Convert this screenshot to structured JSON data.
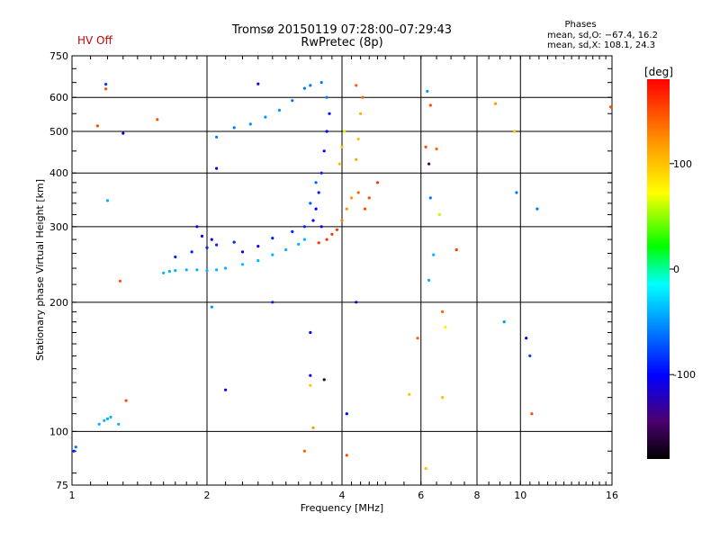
{
  "header": {
    "title": "Tromsø 20150119 07:28:00–07:29:43",
    "subtitle": "RwPretec (8p)",
    "hv_status": "HV Off",
    "hv_color": "#cc0000"
  },
  "phase_info": {
    "title": "Phases",
    "o_mode": "mean, sd,O: −67.4, 16.2",
    "x_mode": "mean, sd,X: 108.1, 24.3"
  },
  "colorbar": {
    "unit": "[deg]",
    "min": -180,
    "max": 180,
    "ticks": [
      100,
      0,
      -100
    ]
  },
  "chart_data": {
    "type": "scatter",
    "title": "Tromsø 20150119 07:28:00–07:29:43",
    "subtitle": "RwPretec (8p)",
    "xlabel": "Frequency [MHz]",
    "ylabel": "Stationary phase Virtual Height [km]",
    "xscale": "log",
    "yscale": "log",
    "xlim": [
      1,
      16
    ],
    "ylim": [
      75,
      750
    ],
    "x_ticks": [
      1,
      2,
      4,
      6,
      8,
      10,
      16
    ],
    "y_ticks": [
      75,
      100,
      200,
      300,
      400,
      500,
      600,
      750
    ],
    "grid": true,
    "color_by": "phase [deg]",
    "series": [
      {
        "name": "Phase samples",
        "points": [
          [
            1.19,
            644,
            -80
          ],
          [
            1.19,
            628,
            150
          ],
          [
            1.14,
            515,
            150
          ],
          [
            1.3,
            495,
            -110
          ],
          [
            1.55,
            533,
            150
          ],
          [
            1.2,
            345,
            -40
          ],
          [
            1.28,
            224,
            150
          ],
          [
            1.15,
            104,
            -40
          ],
          [
            1.18,
            106,
            -40
          ],
          [
            1.2,
            107,
            -40
          ],
          [
            1.22,
            108,
            -40
          ],
          [
            1.27,
            104,
            -40
          ],
          [
            1.01,
            90,
            -90
          ],
          [
            1.02,
            92,
            -60
          ],
          [
            1.32,
            118,
            150
          ],
          [
            1.6,
            234,
            -40
          ],
          [
            1.65,
            236,
            -40
          ],
          [
            1.7,
            237,
            -40
          ],
          [
            1.8,
            238,
            -40
          ],
          [
            1.9,
            238,
            -40
          ],
          [
            2.0,
            237,
            -40
          ],
          [
            2.1,
            238,
            -40
          ],
          [
            2.2,
            240,
            -40
          ],
          [
            2.4,
            245,
            -40
          ],
          [
            2.6,
            250,
            -40
          ],
          [
            2.8,
            258,
            -40
          ],
          [
            3.0,
            265,
            -40
          ],
          [
            3.2,
            273,
            -40
          ],
          [
            3.3,
            280,
            -40
          ],
          [
            1.7,
            255,
            -90
          ],
          [
            1.85,
            262,
            -90
          ],
          [
            2.0,
            268,
            -90
          ],
          [
            2.1,
            272,
            -90
          ],
          [
            2.3,
            276,
            -90
          ],
          [
            1.9,
            300,
            -110
          ],
          [
            1.95,
            285,
            -110
          ],
          [
            2.05,
            280,
            -110
          ],
          [
            2.4,
            262,
            -110
          ],
          [
            2.6,
            270,
            -110
          ],
          [
            2.8,
            282,
            -90
          ],
          [
            3.1,
            292,
            -90
          ],
          [
            3.3,
            300,
            -90
          ],
          [
            3.5,
            330,
            -100
          ],
          [
            3.55,
            360,
            -90
          ],
          [
            3.6,
            400,
            -90
          ],
          [
            3.65,
            450,
            -100
          ],
          [
            3.7,
            500,
            -100
          ],
          [
            3.75,
            550,
            -100
          ],
          [
            3.7,
            600,
            -60
          ],
          [
            3.6,
            650,
            -60
          ],
          [
            3.4,
            640,
            -60
          ],
          [
            3.3,
            630,
            -60
          ],
          [
            3.5,
            380,
            -70
          ],
          [
            3.4,
            340,
            -70
          ],
          [
            3.45,
            310,
            -100
          ],
          [
            3.6,
            300,
            -110
          ],
          [
            3.55,
            275,
            160
          ],
          [
            3.7,
            280,
            160
          ],
          [
            3.8,
            288,
            160
          ],
          [
            3.9,
            295,
            160
          ],
          [
            4.0,
            310,
            130
          ],
          [
            4.1,
            330,
            120
          ],
          [
            4.2,
            350,
            120
          ],
          [
            3.95,
            420,
            100
          ],
          [
            4.0,
            460,
            100
          ],
          [
            4.05,
            500,
            60
          ],
          [
            4.3,
            430,
            110
          ],
          [
            4.35,
            480,
            100
          ],
          [
            4.4,
            550,
            110
          ],
          [
            4.45,
            600,
            140
          ],
          [
            4.3,
            640,
            140
          ],
          [
            4.35,
            360,
            140
          ],
          [
            4.5,
            330,
            150
          ],
          [
            4.6,
            350,
            150
          ],
          [
            4.8,
            380,
            160
          ],
          [
            2.1,
            485,
            -60
          ],
          [
            2.3,
            510,
            -60
          ],
          [
            2.5,
            520,
            -50
          ],
          [
            2.7,
            540,
            -50
          ],
          [
            2.9,
            560,
            -50
          ],
          [
            3.1,
            590,
            -60
          ],
          [
            2.6,
            645,
            -110
          ],
          [
            2.1,
            410,
            -110
          ],
          [
            2.05,
            195,
            -50
          ],
          [
            2.2,
            125,
            -110
          ],
          [
            2.8,
            200,
            -90
          ],
          [
            3.4,
            170,
            -100
          ],
          [
            3.4,
            135,
            -110
          ],
          [
            3.3,
            90,
            140
          ],
          [
            3.4,
            128,
            100
          ],
          [
            3.45,
            102,
            120
          ],
          [
            3.65,
            132,
            -160
          ],
          [
            4.3,
            200,
            -110
          ],
          [
            4.1,
            110,
            -100
          ],
          [
            4.1,
            88,
            150
          ],
          [
            5.65,
            122,
            100
          ],
          [
            5.9,
            165,
            140
          ],
          [
            6.15,
            82,
            100
          ],
          [
            6.2,
            620,
            -50
          ],
          [
            6.3,
            575,
            150
          ],
          [
            6.15,
            460,
            150
          ],
          [
            6.25,
            420,
            -150
          ],
          [
            6.3,
            350,
            -60
          ],
          [
            6.25,
            225,
            -40
          ],
          [
            6.4,
            258,
            -40
          ],
          [
            6.5,
            455,
            140
          ],
          [
            6.6,
            320,
            60
          ],
          [
            6.7,
            190,
            140
          ],
          [
            6.8,
            175,
            80
          ],
          [
            6.7,
            120,
            100
          ],
          [
            7.2,
            265,
            160
          ],
          [
            8.8,
            580,
            120
          ],
          [
            9.2,
            180,
            -50
          ],
          [
            9.7,
            500,
            100
          ],
          [
            9.8,
            360,
            -60
          ],
          [
            10.3,
            165,
            -110
          ],
          [
            10.5,
            150,
            -80
          ],
          [
            10.6,
            110,
            150
          ],
          [
            10.9,
            330,
            -60
          ],
          [
            15.9,
            570,
            150
          ]
        ]
      }
    ]
  }
}
